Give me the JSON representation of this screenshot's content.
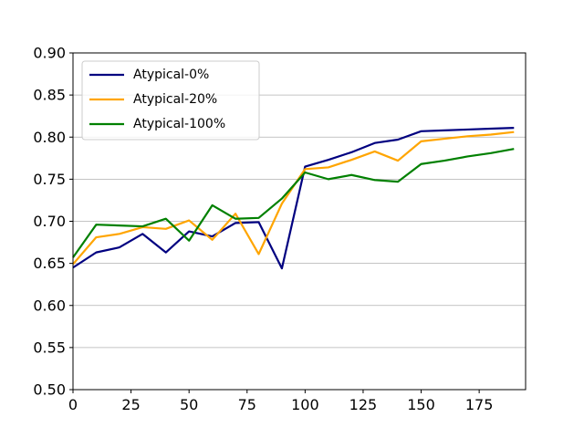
{
  "chart_data": {
    "type": "line",
    "title": "",
    "xlabel": "",
    "ylabel": "",
    "xlim": [
      0,
      195
    ],
    "ylim": [
      0.5,
      0.9
    ],
    "x_ticks": [
      0,
      25,
      50,
      75,
      100,
      125,
      150,
      175
    ],
    "x_tick_labels": [
      "0",
      "25",
      "50",
      "75",
      "100",
      "125",
      "150",
      "175"
    ],
    "y_ticks": [
      0.5,
      0.55,
      0.6,
      0.65,
      0.7,
      0.75,
      0.8,
      0.85,
      0.9
    ],
    "y_tick_labels": [
      "0.50",
      "0.55",
      "0.60",
      "0.65",
      "0.70",
      "0.75",
      "0.80",
      "0.85",
      "0.90"
    ],
    "grid": "horizontal",
    "legend_position": "top-left",
    "x": [
      0,
      10,
      20,
      30,
      40,
      50,
      60,
      70,
      80,
      90,
      100,
      110,
      120,
      130,
      140,
      150,
      160,
      170,
      180,
      190
    ],
    "series": [
      {
        "name": "Atypical-0%",
        "color": "#000080",
        "values": [
          0.645,
          0.663,
          0.669,
          0.685,
          0.663,
          0.688,
          0.682,
          0.698,
          0.699,
          0.644,
          0.765,
          0.773,
          0.782,
          0.793,
          0.797,
          0.807,
          0.808,
          0.809,
          0.81,
          0.811
        ]
      },
      {
        "name": "Atypical-20%",
        "color": "#FFA500",
        "values": [
          0.649,
          0.681,
          0.685,
          0.693,
          0.691,
          0.701,
          0.678,
          0.709,
          0.661,
          0.721,
          0.762,
          0.764,
          0.773,
          0.783,
          0.772,
          0.795,
          0.798,
          0.801,
          0.803,
          0.806
        ]
      },
      {
        "name": "Atypical-100%",
        "color": "#008000",
        "values": [
          0.657,
          0.696,
          0.695,
          0.694,
          0.703,
          0.677,
          0.719,
          0.703,
          0.704,
          0.727,
          0.758,
          0.75,
          0.755,
          0.749,
          0.747,
          0.768,
          0.772,
          0.777,
          0.781,
          0.786
        ]
      }
    ]
  }
}
